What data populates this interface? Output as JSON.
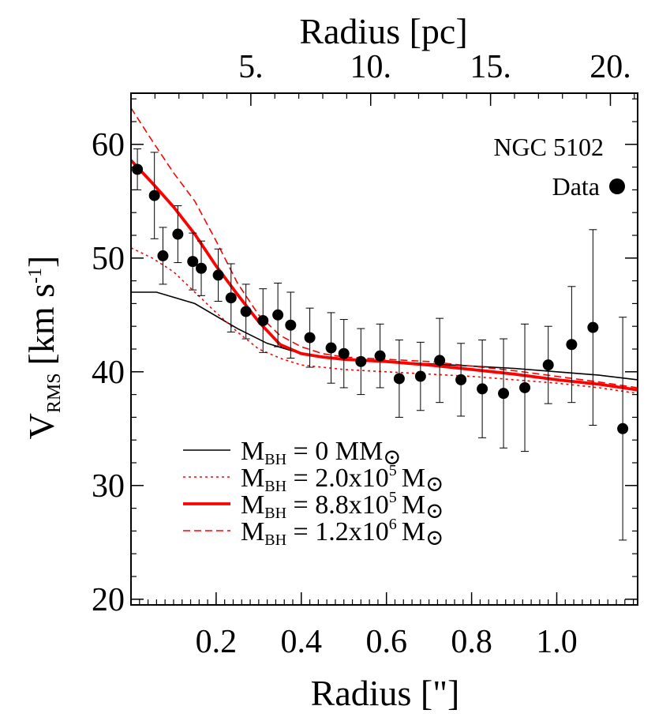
{
  "chart_data": {
    "type": "scatter",
    "title": "",
    "annotation": "NGC 5102",
    "xlabel": "Radius [\"]",
    "x2label": "Radius [pc]",
    "ylabel_main": "V",
    "ylabel_sub": "RMS",
    "ylabel_unit": "[km s",
    "ylabel_exp": "-1",
    "ylabel_close": "]",
    "xlim": [
      0.0,
      1.19
    ],
    "ylim": [
      19.5,
      64.5
    ],
    "x_ticks": [
      {
        "value": 0.2,
        "label": "0.2"
      },
      {
        "value": 0.4,
        "label": "0.4"
      },
      {
        "value": 0.6,
        "label": "0.6"
      },
      {
        "value": 0.8,
        "label": "0.8"
      },
      {
        "value": 1.0,
        "label": "1.0"
      }
    ],
    "x_minor_step": 0.02,
    "y_ticks": [
      {
        "value": 20,
        "label": "20"
      },
      {
        "value": 30,
        "label": "30"
      },
      {
        "value": 40,
        "label": "40"
      },
      {
        "value": 50,
        "label": "50"
      },
      {
        "value": 60,
        "label": "60"
      }
    ],
    "y_minor_step": 2,
    "x2_arcsec_per_pc": 0.0563,
    "x2_ticks": [
      {
        "value": 5,
        "label": "5."
      },
      {
        "value": 10,
        "label": "10."
      },
      {
        "value": 15,
        "label": "15."
      },
      {
        "value": 20,
        "label": "20."
      }
    ],
    "x2_minor_step": 1,
    "data_series": {
      "name": "Data",
      "points": [
        {
          "x": 0.015,
          "y": 57.8,
          "err": 1.8
        },
        {
          "x": 0.055,
          "y": 55.5,
          "err": 3.8
        },
        {
          "x": 0.075,
          "y": 50.2,
          "err": 2.5
        },
        {
          "x": 0.11,
          "y": 52.1,
          "err": 2.5
        },
        {
          "x": 0.145,
          "y": 49.7,
          "err": 2.5
        },
        {
          "x": 0.165,
          "y": 49.1,
          "err": 2.4
        },
        {
          "x": 0.205,
          "y": 48.5,
          "err": 2.3
        },
        {
          "x": 0.235,
          "y": 46.5,
          "err": 3.0
        },
        {
          "x": 0.27,
          "y": 45.3,
          "err": 2.4
        },
        {
          "x": 0.31,
          "y": 44.5,
          "err": 2.8
        },
        {
          "x": 0.345,
          "y": 45.0,
          "err": 2.8
        },
        {
          "x": 0.375,
          "y": 44.1,
          "err": 2.9
        },
        {
          "x": 0.42,
          "y": 43.0,
          "err": 2.6
        },
        {
          "x": 0.47,
          "y": 42.1,
          "err": 3.1
        },
        {
          "x": 0.5,
          "y": 41.6,
          "err": 3.0
        },
        {
          "x": 0.54,
          "y": 40.9,
          "err": 2.9
        },
        {
          "x": 0.585,
          "y": 41.4,
          "err": 2.8
        },
        {
          "x": 0.63,
          "y": 39.4,
          "err": 3.4
        },
        {
          "x": 0.68,
          "y": 39.6,
          "err": 3.0
        },
        {
          "x": 0.725,
          "y": 41.0,
          "err": 3.7
        },
        {
          "x": 0.775,
          "y": 39.3,
          "err": 3.2
        },
        {
          "x": 0.825,
          "y": 38.5,
          "err": 4.3
        },
        {
          "x": 0.875,
          "y": 38.1,
          "err": 4.8
        },
        {
          "x": 0.925,
          "y": 38.6,
          "err": 5.6
        },
        {
          "x": 0.98,
          "y": 40.6,
          "err": 3.4
        },
        {
          "x": 1.035,
          "y": 42.4,
          "err": 5.1
        },
        {
          "x": 1.085,
          "y": 43.9,
          "err": 8.6
        },
        {
          "x": 1.155,
          "y": 35.0,
          "err": 9.8
        }
      ]
    },
    "models": [
      {
        "name_prefix": "M",
        "name_sub": "BH",
        "name_mid": " = 0 M",
        "name_exp": "",
        "color": "#000000",
        "dash": "",
        "width": 1.6,
        "x": [
          0.0,
          0.06,
          0.15,
          0.25,
          0.32,
          0.4,
          0.5,
          0.6,
          0.7,
          0.8,
          0.9,
          1.0,
          1.1,
          1.19
        ],
        "y": [
          47.0,
          47.0,
          46.0,
          43.8,
          42.5,
          41.6,
          41.1,
          40.9,
          40.7,
          40.5,
          40.3,
          40.0,
          39.7,
          39.3
        ]
      },
      {
        "name_prefix": "M",
        "name_sub": "BH",
        "name_mid": " = 2.0x10",
        "name_exp": "5",
        "color": "#ff0000",
        "dash": "3,4",
        "width": 1.6,
        "x": [
          0.0,
          0.05,
          0.1,
          0.15,
          0.2,
          0.25,
          0.3,
          0.35,
          0.4,
          0.5,
          0.6,
          0.7,
          0.8,
          0.9,
          1.0,
          1.1,
          1.19
        ],
        "y": [
          50.9,
          50.0,
          48.8,
          47.0,
          45.2,
          43.5,
          42.0,
          41.2,
          40.6,
          40.2,
          40.0,
          39.8,
          39.6,
          39.3,
          39.0,
          38.6,
          38.1
        ]
      },
      {
        "name_prefix": "M",
        "name_sub": "BH",
        "name_mid": " = 8.8x10",
        "name_exp": "5",
        "color": "#ff0000",
        "dash": "",
        "width": 3.8,
        "x": [
          0.0,
          0.05,
          0.1,
          0.15,
          0.2,
          0.25,
          0.3,
          0.35,
          0.4,
          0.45,
          0.5,
          0.6,
          0.7,
          0.8,
          0.9,
          1.0,
          1.1,
          1.19
        ],
        "y": [
          58.6,
          56.6,
          54.5,
          52.1,
          49.3,
          46.8,
          44.4,
          42.4,
          41.6,
          41.3,
          41.1,
          40.9,
          40.6,
          40.2,
          39.8,
          39.3,
          38.9,
          38.4
        ]
      },
      {
        "name_prefix": "M",
        "name_sub": "BH",
        "name_mid": " = 1.2x10",
        "name_exp": "6",
        "color": "#ff0000",
        "dash": "9,5",
        "width": 1.6,
        "x": [
          0.0,
          0.05,
          0.1,
          0.15,
          0.2,
          0.25,
          0.3,
          0.35,
          0.4,
          0.45,
          0.5,
          0.6,
          0.7,
          0.8,
          0.9,
          1.0,
          1.1,
          1.19
        ],
        "y": [
          63.2,
          60.3,
          57.5,
          55.0,
          51.5,
          47.8,
          45.0,
          43.2,
          42.2,
          41.6,
          41.3,
          41.1,
          40.9,
          40.5,
          40.1,
          39.6,
          39.1,
          38.6
        ]
      }
    ],
    "legend_position": "bottom-left",
    "legend_sun_symbol": "⊙"
  }
}
